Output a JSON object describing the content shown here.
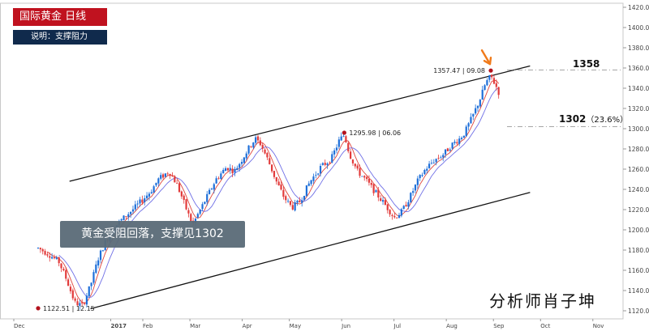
{
  "header": {
    "title": "国际黄金  日线",
    "subtitle": "说明：支撑阻力"
  },
  "callout": "黄金受阻回落，支撑见1302",
  "author": "分析师肖子坤",
  "levels": {
    "resistance_label": "1358",
    "support_label": "1302",
    "support_pct": "（23.6%）"
  },
  "chart_data": {
    "type": "candlestick",
    "title": "国际黄金  日线",
    "ylim": [
      1112,
      1424
    ],
    "y_ticks": [
      1120,
      1140,
      1160,
      1180,
      1200,
      1220,
      1240,
      1260,
      1280,
      1300,
      1320,
      1340,
      1360,
      1380,
      1400,
      1420
    ],
    "x_months": [
      {
        "label": "Dec",
        "pos": 0.0
      },
      {
        "label": "2017",
        "pos": 0.1
      },
      {
        "label": "Feb",
        "pos": 0.2
      },
      {
        "label": "Mar",
        "pos": 0.29
      },
      {
        "label": "Apr",
        "pos": 0.39
      },
      {
        "label": "May",
        "pos": 0.48
      },
      {
        "label": "Jun",
        "pos": 0.58
      },
      {
        "label": "Jul",
        "pos": 0.68
      },
      {
        "label": "Aug",
        "pos": 0.78
      },
      {
        "label": "Sep",
        "pos": 0.87
      },
      {
        "label": "Oct",
        "pos": 0.96
      },
      {
        "label": "Nov",
        "pos": 1.06
      }
    ],
    "annotations": [
      {
        "label": "1122.51 | 12.15",
        "value": 1122.51
      },
      {
        "label": "1295.98 | 06.06",
        "value": 1295.98
      },
      {
        "label": "1357.47 | 09.08",
        "value": 1357.47
      }
    ],
    "horizontal_levels": [
      1358,
      1302
    ],
    "channel": {
      "upper": [
        {
          "pos": 0.06,
          "value": 1248
        },
        {
          "pos": 0.94,
          "value": 1362
        }
      ],
      "lower": [
        {
          "pos": 0.1,
          "value": 1122
        },
        {
          "pos": 0.94,
          "value": 1237
        }
      ]
    },
    "price_path": [
      [
        0.0,
        1182
      ],
      [
        0.02,
        1176
      ],
      [
        0.04,
        1168
      ],
      [
        0.055,
        1150
      ],
      [
        0.07,
        1128
      ],
      [
        0.085,
        1125
      ],
      [
        0.1,
        1145
      ],
      [
        0.115,
        1172
      ],
      [
        0.13,
        1190
      ],
      [
        0.15,
        1205
      ],
      [
        0.17,
        1215
      ],
      [
        0.185,
        1222
      ],
      [
        0.2,
        1230
      ],
      [
        0.215,
        1238
      ],
      [
        0.23,
        1250
      ],
      [
        0.25,
        1258
      ],
      [
        0.265,
        1245
      ],
      [
        0.275,
        1232
      ],
      [
        0.285,
        1218
      ],
      [
        0.295,
        1205
      ],
      [
        0.305,
        1215
      ],
      [
        0.32,
        1230
      ],
      [
        0.34,
        1250
      ],
      [
        0.36,
        1262
      ],
      [
        0.375,
        1258
      ],
      [
        0.39,
        1270
      ],
      [
        0.405,
        1283
      ],
      [
        0.415,
        1290
      ],
      [
        0.425,
        1285
      ],
      [
        0.44,
        1268
      ],
      [
        0.455,
        1248
      ],
      [
        0.47,
        1232
      ],
      [
        0.485,
        1222
      ],
      [
        0.5,
        1228
      ],
      [
        0.52,
        1248
      ],
      [
        0.54,
        1262
      ],
      [
        0.56,
        1270
      ],
      [
        0.575,
        1288
      ],
      [
        0.585,
        1294
      ],
      [
        0.595,
        1275
      ],
      [
        0.61,
        1258
      ],
      [
        0.625,
        1250
      ],
      [
        0.64,
        1240
      ],
      [
        0.655,
        1230
      ],
      [
        0.67,
        1220
      ],
      [
        0.68,
        1212
      ],
      [
        0.695,
        1218
      ],
      [
        0.71,
        1232
      ],
      [
        0.725,
        1248
      ],
      [
        0.74,
        1260
      ],
      [
        0.755,
        1268
      ],
      [
        0.775,
        1275
      ],
      [
        0.79,
        1284
      ],
      [
        0.805,
        1290
      ],
      [
        0.815,
        1296
      ],
      [
        0.83,
        1312
      ],
      [
        0.845,
        1330
      ],
      [
        0.855,
        1345
      ],
      [
        0.865,
        1352
      ],
      [
        0.875,
        1342
      ],
      [
        0.88,
        1336
      ]
    ]
  }
}
